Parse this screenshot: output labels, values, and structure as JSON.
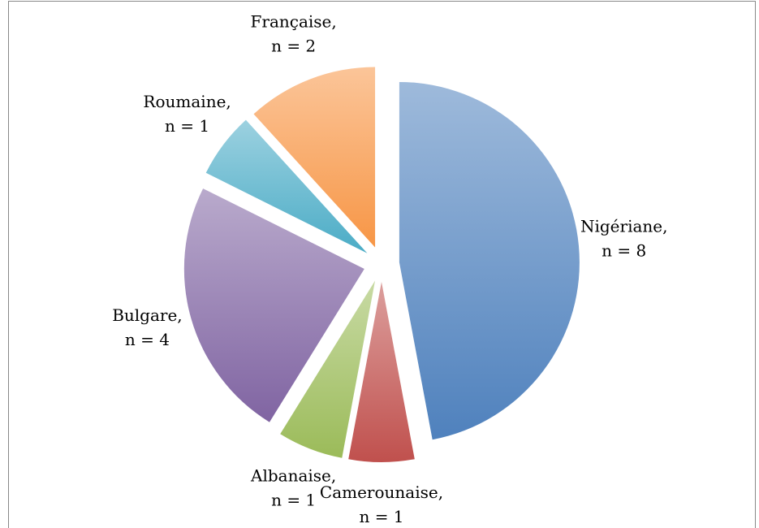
{
  "chart_data": {
    "type": "pie",
    "categories": [
      "Nigériane,",
      "Camerounaise,",
      "Albanaise,",
      "Bulgare,",
      "Roumaine,",
      "Française,"
    ],
    "values": [
      8,
      1,
      1,
      4,
      1,
      2
    ],
    "value_labels": [
      "n = 8",
      "n = 1",
      "n = 1",
      "n = 4",
      "n = 1",
      "n = 2"
    ],
    "colors": [
      "#4f81bd",
      "#c0504d",
      "#9bbb59",
      "#8064a2",
      "#4bacc6",
      "#f79646"
    ]
  }
}
